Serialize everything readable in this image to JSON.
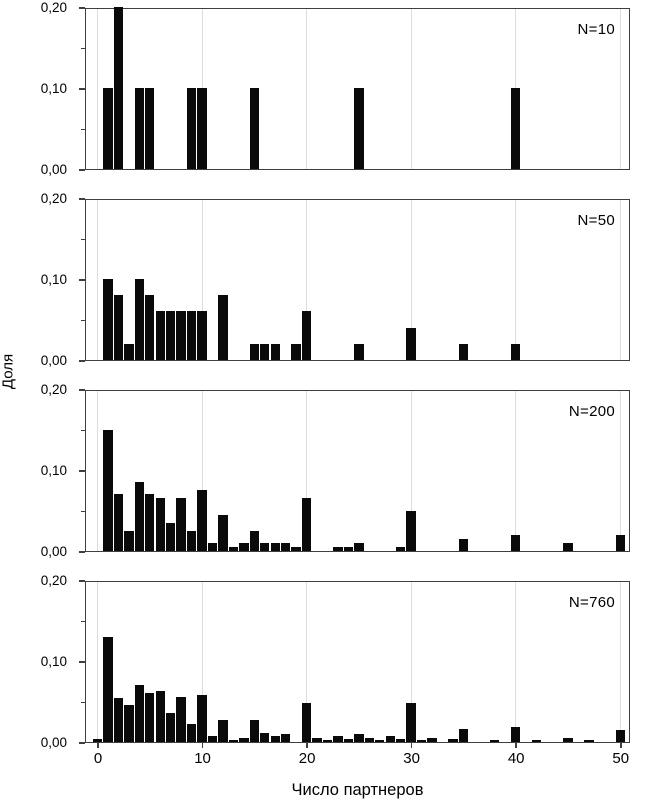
{
  "figure": {
    "xlabel": "Число партнеров",
    "ylabel": "Доля",
    "x_tick_labels": [
      "0",
      "10",
      "20",
      "30",
      "40",
      "50"
    ],
    "x_tick_values": [
      0,
      10,
      20,
      30,
      40,
      50
    ],
    "y_tick_labels": [
      "0,20",
      "0,10",
      "0,00"
    ],
    "y_tick_values": [
      0.2,
      0.1,
      0.0
    ],
    "y_minor_tick_values": [
      0.15,
      0.05
    ],
    "grid": "vertical-only",
    "colors": {
      "bar": "#0a0a0a",
      "grid": "#dcdcdc",
      "frame": "#3f3f3f",
      "background": "#ffffff",
      "text": "#000000"
    }
  },
  "chart_data": [
    {
      "type": "bar",
      "panel_label": "N=10",
      "n": 10,
      "xlim": [
        -1.2,
        51
      ],
      "ylim": [
        0,
        0.2
      ],
      "x": [
        1,
        2,
        4,
        5,
        9,
        10,
        15,
        25,
        40
      ],
      "values": [
        0.1,
        0.2,
        0.1,
        0.1,
        0.1,
        0.1,
        0.1,
        0.1,
        0.1
      ]
    },
    {
      "type": "bar",
      "panel_label": "N=50",
      "n": 50,
      "xlim": [
        -1.2,
        51
      ],
      "ylim": [
        0,
        0.2
      ],
      "x": [
        1,
        2,
        3,
        4,
        5,
        6,
        7,
        8,
        9,
        10,
        12,
        15,
        16,
        17,
        19,
        20,
        25,
        30,
        35,
        40
      ],
      "values": [
        0.1,
        0.08,
        0.02,
        0.1,
        0.08,
        0.06,
        0.06,
        0.06,
        0.06,
        0.06,
        0.08,
        0.02,
        0.02,
        0.02,
        0.02,
        0.06,
        0.02,
        0.04,
        0.02,
        0.02
      ]
    },
    {
      "type": "bar",
      "panel_label": "N=200",
      "n": 200,
      "xlim": [
        -1.2,
        51
      ],
      "ylim": [
        0,
        0.2
      ],
      "x": [
        1,
        2,
        3,
        4,
        5,
        6,
        7,
        8,
        9,
        10,
        11,
        12,
        13,
        14,
        15,
        16,
        17,
        18,
        19,
        20,
        23,
        24,
        25,
        29,
        30,
        35,
        40,
        45,
        50
      ],
      "values": [
        0.15,
        0.07,
        0.025,
        0.085,
        0.07,
        0.065,
        0.035,
        0.065,
        0.025,
        0.075,
        0.01,
        0.045,
        0.005,
        0.01,
        0.025,
        0.01,
        0.01,
        0.01,
        0.005,
        0.065,
        0.005,
        0.005,
        0.01,
        0.005,
        0.05,
        0.015,
        0.02,
        0.01,
        0.02
      ]
    },
    {
      "type": "bar",
      "panel_label": "N=760",
      "n": 760,
      "xlim": [
        -1.2,
        51
      ],
      "ylim": [
        0,
        0.2
      ],
      "x": [
        0,
        1,
        2,
        3,
        4,
        5,
        6,
        7,
        8,
        9,
        10,
        11,
        12,
        13,
        14,
        15,
        16,
        17,
        18,
        20,
        21,
        22,
        23,
        24,
        25,
        26,
        27,
        28,
        29,
        30,
        31,
        32,
        34,
        35,
        38,
        40,
        42,
        45,
        47,
        50
      ],
      "values": [
        0.004,
        0.13,
        0.054,
        0.046,
        0.07,
        0.061,
        0.063,
        0.036,
        0.056,
        0.022,
        0.058,
        0.008,
        0.027,
        0.003,
        0.005,
        0.027,
        0.011,
        0.008,
        0.01,
        0.048,
        0.005,
        0.003,
        0.007,
        0.004,
        0.01,
        0.005,
        0.002,
        0.007,
        0.004,
        0.048,
        0.003,
        0.005,
        0.004,
        0.016,
        0.003,
        0.018,
        0.003,
        0.005,
        0.002,
        0.015
      ]
    }
  ]
}
